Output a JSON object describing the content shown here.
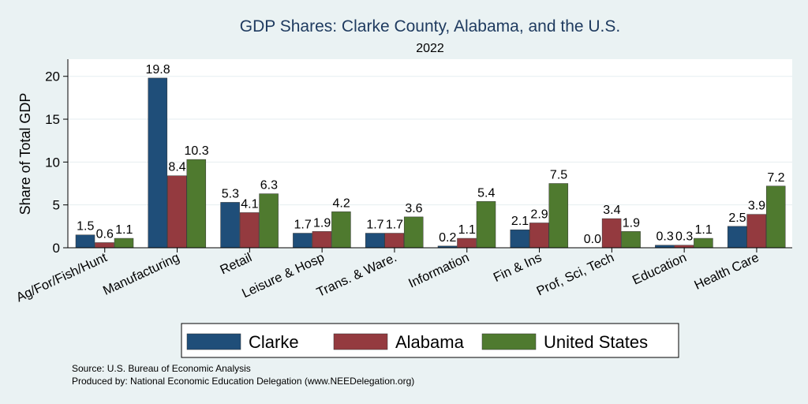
{
  "chart_data": {
    "type": "bar",
    "title": "GDP Shares: Clarke County, Alabama, and the U.S.",
    "subtitle": "2022",
    "xlabel": "",
    "ylabel": "Share of Total GDP",
    "ylim": [
      0,
      22
    ],
    "yticks": [
      "0",
      "5",
      "10",
      "15",
      "20"
    ],
    "grid": true,
    "legend_position": "bottom",
    "categories": [
      "Ag/For/Fish/Hunt",
      "Manufacturing",
      "Retail",
      "Leisure & Hosp",
      "Trans. & Ware.",
      "Information",
      "Fin & Ins",
      "Prof, Sci, Tech",
      "Education",
      "Health Care"
    ],
    "series": [
      {
        "name": "Clarke",
        "color": "#1f4e79",
        "values": [
          1.5,
          19.8,
          5.3,
          1.7,
          1.7,
          0.2,
          2.1,
          0.0,
          0.3,
          2.5
        ],
        "labels": [
          "1.5",
          "19.8",
          "5.3",
          "1.7",
          "1.7",
          "0.2",
          "2.1",
          "0.0",
          "0.3",
          "2.5"
        ]
      },
      {
        "name": "Alabama",
        "color": "#943a3f",
        "values": [
          0.6,
          8.4,
          4.1,
          1.9,
          1.7,
          1.1,
          2.9,
          3.4,
          0.3,
          3.9
        ],
        "labels": [
          "0.6",
          "8.4",
          "4.1",
          "1.9",
          "1.7",
          "1.1",
          "2.9",
          "3.4",
          "0.3",
          "3.9"
        ]
      },
      {
        "name": "United States",
        "color": "#4f7a2f",
        "values": [
          1.1,
          10.3,
          6.3,
          4.2,
          3.6,
          5.4,
          7.5,
          1.9,
          1.1,
          7.2
        ],
        "labels": [
          "1.1",
          "10.3",
          "6.3",
          "4.2",
          "3.6",
          "5.4",
          "7.5",
          "1.9",
          "1.1",
          "7.2"
        ]
      }
    ]
  },
  "footer": {
    "source": "Source: U.S. Bureau of Economic Analysis",
    "produced_by": "Produced by: National Economic Education Delegation (www.NEEDelegation.org)"
  }
}
